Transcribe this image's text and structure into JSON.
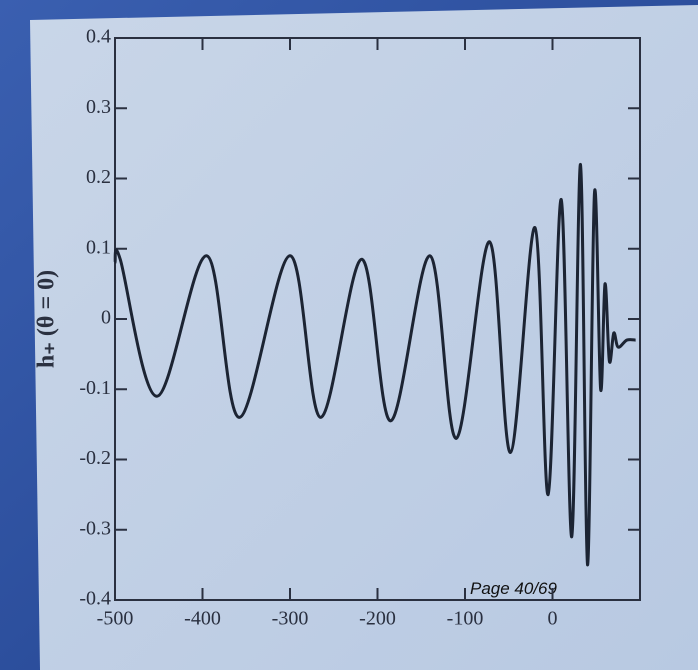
{
  "chart_data": {
    "type": "line",
    "y_label": "h₊ (θ = 0)",
    "page_label": "Page 40/69",
    "xlim": [
      -500,
      100
    ],
    "xticks": [
      -500,
      -400,
      -300,
      -200,
      -100,
      0
    ],
    "ylim": [
      -0.4,
      0.4
    ],
    "yticks": [
      -0.4,
      -0.3,
      -0.2,
      -0.1,
      0,
      0.1,
      0.2,
      0.3,
      0.4
    ],
    "series": [
      {
        "color": "#1c2433",
        "x": [
          -500,
          -494,
          -452,
          -395,
          -358,
          -300,
          -265,
          -218,
          -185,
          -140,
          -110,
          -72,
          -48,
          -20,
          -5,
          10,
          22,
          32,
          40,
          48,
          55,
          60,
          65,
          70,
          75,
          85,
          95
        ],
        "values": [
          0.08,
          0.085,
          -0.11,
          0.09,
          -0.14,
          0.09,
          -0.14,
          0.085,
          -0.145,
          0.09,
          -0.17,
          0.11,
          -0.19,
          0.13,
          -0.25,
          0.17,
          -0.31,
          0.22,
          -0.35,
          0.18,
          -0.1,
          0.05,
          -0.06,
          -0.02,
          -0.04,
          -0.03,
          -0.03
        ]
      }
    ]
  }
}
